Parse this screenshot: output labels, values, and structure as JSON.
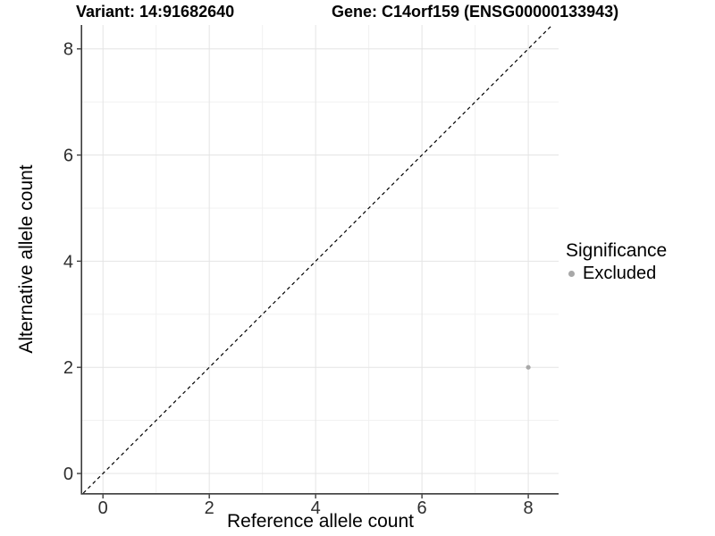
{
  "colors": {
    "background": "#ffffff",
    "grid_major": "#e4e4e4",
    "grid_minor": "#f1f1f1",
    "axis_line": "#3c3c3c",
    "tick_label": "#2e2e2e",
    "identity_line": "#000000",
    "point": "#a8a8a8"
  },
  "chart_data": {
    "type": "scatter",
    "title_left": "Variant: 14:91682640",
    "title_right": "Gene: C14orf159 (ENSG00000133943)",
    "xlabel": "Reference allele count",
    "ylabel": "Alternative allele count",
    "xlim": [
      -0.39,
      8.57
    ],
    "ylim": [
      -0.37,
      8.45
    ],
    "xticks": [
      0,
      2,
      4,
      6,
      8
    ],
    "yticks": [
      0,
      2,
      4,
      6,
      8
    ],
    "minor_xticks": [
      1,
      3,
      5,
      7
    ],
    "minor_yticks": [
      1,
      3,
      5,
      7
    ],
    "grid": true,
    "identity_line": {
      "slope": 1,
      "intercept": 0,
      "style": "dashed"
    },
    "points": [
      {
        "x": 8,
        "y": 2,
        "series": "Excluded"
      }
    ],
    "legend": {
      "title": "Significance",
      "position": "right",
      "entries": [
        {
          "label": "Excluded",
          "color": "#a8a8a8"
        }
      ]
    }
  }
}
